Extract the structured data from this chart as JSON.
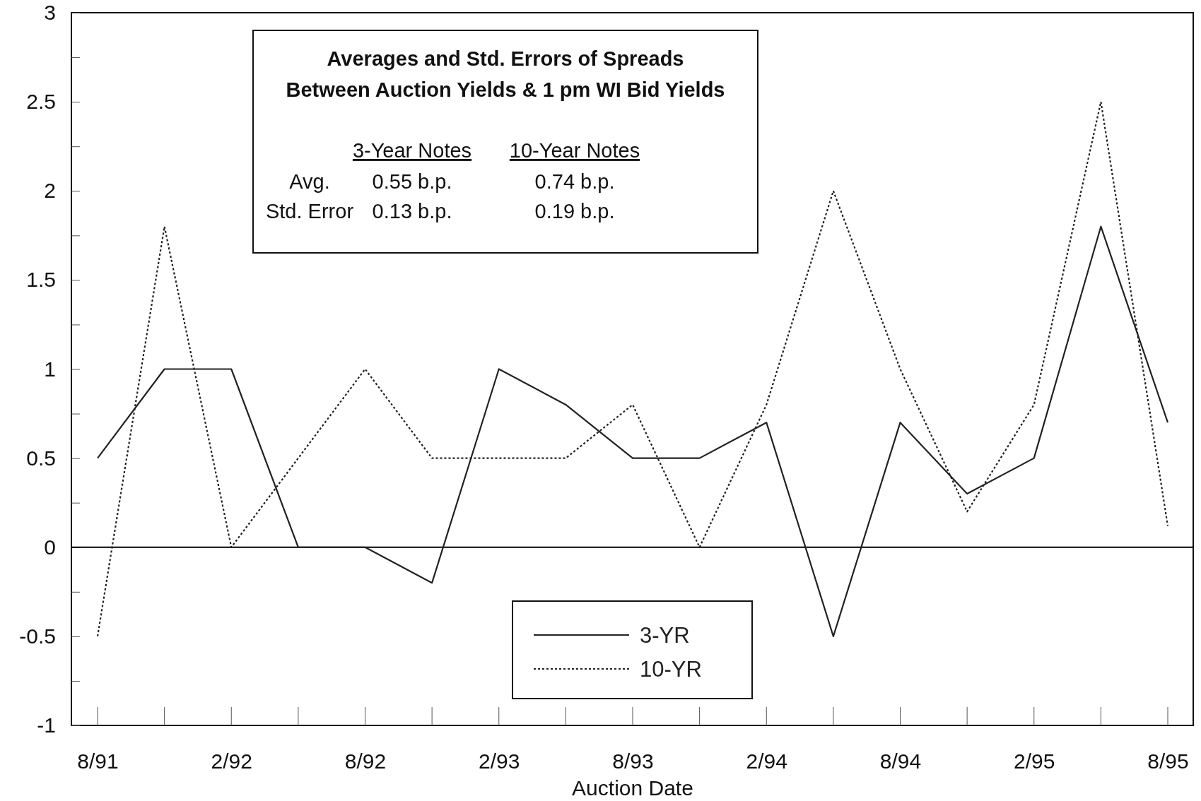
{
  "chart_data": {
    "type": "line",
    "title": "Averages and Std. Errors of Spreads\nBetween Auction Yields & 1 pm WI Bid Yields",
    "xlabel": "Auction Date",
    "categories": [
      "8/91",
      null,
      "2/92",
      null,
      "8/92",
      null,
      "2/93",
      null,
      "8/93",
      null,
      "2/94",
      null,
      "8/94",
      null,
      "2/95",
      null,
      "8/95"
    ],
    "series": [
      {
        "name": "3-YR",
        "color": "#222222",
        "line_style": "solid",
        "values": [
          0.5,
          1,
          1,
          0,
          0,
          -0.2,
          1,
          0.8,
          0.5,
          0.5,
          0.7,
          -0.5,
          0.7,
          0.3,
          0.5,
          1.8,
          0.7
        ]
      },
      {
        "name": "10-YR",
        "color": "#222222",
        "line_style": "dotted",
        "values": [
          -0.5,
          1.8,
          0,
          0.5,
          1,
          0.5,
          0.5,
          0.5,
          0.8,
          0,
          0.8,
          2,
          1,
          0.2,
          0.8,
          2.5,
          0.12
        ]
      }
    ],
    "ylim": [
      -1,
      3
    ],
    "yticks": [
      -1,
      {
        "value": -0.75,
        "label": null
      },
      -0.5,
      {
        "value": -0.25,
        "label": null
      },
      0,
      {
        "value": 0.25,
        "label": null
      },
      0.5,
      {
        "value": 0.75,
        "label": null
      },
      1,
      {
        "value": 1.25,
        "label": null
      },
      1.5,
      {
        "value": 1.75,
        "label": null
      },
      2,
      {
        "value": 2.25,
        "label": null
      },
      2.5,
      {
        "value": 2.75,
        "label": null
      },
      3
    ],
    "ref_lines": [
      {
        "axis": "y",
        "value": 0,
        "color": "#000000"
      }
    ],
    "annotations": [
      "3-Year Notes",
      "10-Year Notes",
      "Avg.",
      "0.55 b.p.",
      "0.74 b.p.",
      "Std. Error",
      "0.13 b.p.",
      "0.19 b.p."
    ],
    "grid": false,
    "legend": "bottom"
  }
}
